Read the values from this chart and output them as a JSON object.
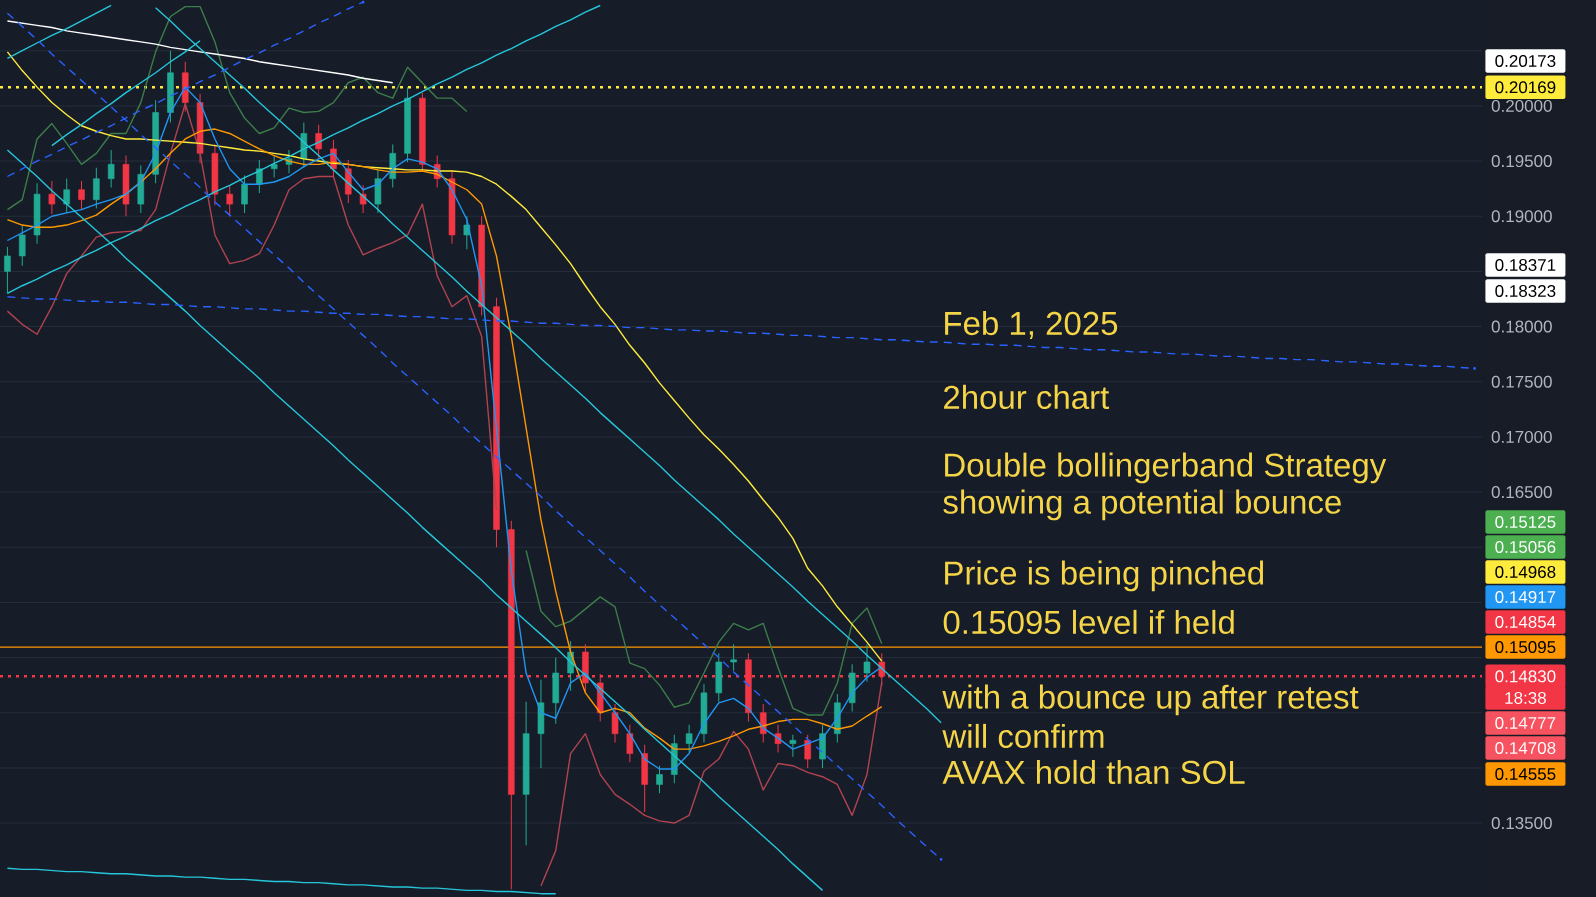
{
  "chart_data": {
    "type": "candlestick",
    "categories": [
      null,
      null,
      null,
      null,
      null,
      null,
      null,
      null,
      null,
      null,
      null,
      null,
      null,
      null,
      null,
      null,
      null,
      null,
      null,
      null,
      null,
      null,
      null,
      null,
      null,
      null,
      null,
      null,
      null,
      null,
      null,
      null,
      null,
      null,
      null,
      null,
      null,
      null,
      null,
      null,
      null,
      null,
      null,
      null,
      null,
      null,
      null,
      null,
      null,
      null,
      null,
      null,
      null,
      null,
      null,
      null,
      null,
      null,
      null,
      null,
      null,
      null,
      null,
      null,
      null,
      null,
      null,
      null,
      null,
      null,
      null,
      null,
      null,
      null,
      null,
      null,
      null,
      null,
      null,
      null,
      null,
      null,
      null,
      null,
      null,
      null,
      null,
      null,
      null,
      null,
      null,
      null,
      null,
      null,
      null,
      null,
      null,
      null,
      null,
      null
    ],
    "ohlc": [
      [
        0.185,
        0.1872,
        0.183,
        0.1864
      ],
      [
        0.1864,
        0.1892,
        0.1855,
        0.1883
      ],
      [
        0.1883,
        0.193,
        0.1875,
        0.192
      ],
      [
        0.192,
        0.1932,
        0.1902,
        0.1911
      ],
      [
        0.1911,
        0.1934,
        0.1903,
        0.1924
      ],
      [
        0.1924,
        0.1932,
        0.1906,
        0.1915
      ],
      [
        0.1915,
        0.1944,
        0.1907,
        0.1934
      ],
      [
        0.1934,
        0.196,
        0.1926,
        0.1947
      ],
      [
        0.1947,
        0.1955,
        0.19,
        0.1911
      ],
      [
        0.1911,
        0.1946,
        0.1903,
        0.1938
      ],
      [
        0.1938,
        0.2005,
        0.193,
        0.1994
      ],
      [
        0.1994,
        0.205,
        0.1985,
        0.203
      ],
      [
        0.203,
        0.204,
        0.1995,
        0.2003
      ],
      [
        0.2003,
        0.2011,
        0.1948,
        0.1957
      ],
      [
        0.1957,
        0.1965,
        0.191,
        0.192
      ],
      [
        0.192,
        0.1928,
        0.19,
        0.1911
      ],
      [
        0.1911,
        0.1937,
        0.1903,
        0.1929
      ],
      [
        0.1929,
        0.1951,
        0.1921,
        0.1943
      ],
      [
        0.1943,
        0.1955,
        0.1935,
        0.1947
      ],
      [
        0.1947,
        0.196,
        0.1939,
        0.1952
      ],
      [
        0.1952,
        0.1985,
        0.1944,
        0.1975
      ],
      [
        0.1975,
        0.1983,
        0.1953,
        0.1961
      ],
      [
        0.1961,
        0.1969,
        0.1935,
        0.1943
      ],
      [
        0.1943,
        0.1951,
        0.1912,
        0.192
      ],
      [
        0.192,
        0.1928,
        0.1903,
        0.1911
      ],
      [
        0.1911,
        0.1942,
        0.1903,
        0.1934
      ],
      [
        0.1934,
        0.1965,
        0.1926,
        0.1957
      ],
      [
        0.1957,
        0.20169,
        0.1949,
        0.2007
      ],
      [
        0.2007,
        0.2012,
        0.194,
        0.1947
      ],
      [
        0.1947,
        0.1955,
        0.1926,
        0.1934
      ],
      [
        0.1934,
        0.1942,
        0.1875,
        0.1883
      ],
      [
        0.1883,
        0.19,
        0.187,
        0.1892
      ],
      [
        0.1892,
        0.19,
        0.181,
        0.1818
      ],
      [
        0.1818,
        0.1826,
        0.16,
        0.1616
      ],
      [
        0.1616,
        0.1624,
        0.129,
        0.1376
      ],
      [
        0.1376,
        0.146,
        0.133,
        0.1431
      ],
      [
        0.1431,
        0.148,
        0.14,
        0.1459
      ],
      [
        0.1459,
        0.15,
        0.144,
        0.1486
      ],
      [
        0.1486,
        0.1515,
        0.147,
        0.1505
      ],
      [
        0.1505,
        0.1512,
        0.1468,
        0.1477
      ],
      [
        0.1477,
        0.1485,
        0.1442,
        0.145
      ],
      [
        0.145,
        0.1458,
        0.1423,
        0.1431
      ],
      [
        0.1431,
        0.1439,
        0.1405,
        0.1413
      ],
      [
        0.1413,
        0.1421,
        0.136,
        0.1385
      ],
      [
        0.1385,
        0.1402,
        0.1377,
        0.1394
      ],
      [
        0.1394,
        0.143,
        0.1386,
        0.1422
      ],
      [
        0.1422,
        0.1439,
        0.1414,
        0.1431
      ],
      [
        0.1431,
        0.1476,
        0.1423,
        0.1468
      ],
      [
        0.1468,
        0.1504,
        0.146,
        0.1496
      ],
      [
        0.1496,
        0.1512,
        0.1488,
        0.1498
      ],
      [
        0.1498,
        0.1504,
        0.1442,
        0.145
      ],
      [
        0.145,
        0.1458,
        0.1423,
        0.1431
      ],
      [
        0.1431,
        0.1439,
        0.1414,
        0.1422
      ],
      [
        0.1422,
        0.143,
        0.141,
        0.1425
      ],
      [
        0.1425,
        0.143,
        0.14,
        0.1408
      ],
      [
        0.1408,
        0.1439,
        0.14,
        0.1431
      ],
      [
        0.1431,
        0.1467,
        0.1423,
        0.1459
      ],
      [
        0.1459,
        0.1494,
        0.1451,
        0.1486
      ],
      [
        0.1486,
        0.1512,
        0.1478,
        0.1496
      ],
      [
        0.1496,
        0.1504,
        0.1475,
        0.1483
      ],
      null,
      null,
      null,
      null,
      null,
      null,
      null,
      null,
      null,
      null,
      null,
      null,
      null,
      null,
      null,
      null,
      null,
      null,
      null,
      null,
      null,
      null,
      null,
      null,
      null,
      null,
      null,
      null,
      null,
      null,
      null,
      null,
      null,
      null,
      null,
      null,
      null,
      null,
      null,
      null
    ],
    "colors": [
      "#22ab94",
      "#22ab94",
      "#22ab94",
      "#f23645",
      "#22ab94",
      "#f23645",
      "#22ab94",
      "#22ab94",
      "#f23645",
      "#22ab94",
      "#22ab94",
      "#22ab94",
      "#f23645",
      "#f23645",
      "#f23645",
      "#f23645",
      "#22ab94",
      "#22ab94",
      "#22ab94",
      "#22ab94",
      "#22ab94",
      "#f23645",
      "#f23645",
      "#f23645",
      "#f23645",
      "#22ab94",
      "#22ab94",
      "#22ab94",
      "#f23645",
      "#f23645",
      "#f23645",
      "#22ab94",
      "#f23645",
      "#f23645",
      "#f23645",
      "#22ab94",
      "#22ab94",
      "#22ab94",
      "#22ab94",
      "#f23645",
      "#f23645",
      "#f23645",
      "#f23645",
      "#f23645",
      "#22ab94",
      "#22ab94",
      "#22ab94",
      "#22ab94",
      "#22ab94",
      "#22ab94",
      "#f23645",
      "#f23645",
      "#f23645",
      "#22ab94",
      "#f23645",
      "#22ab94",
      "#22ab94",
      "#22ab94",
      "#22ab94",
      "#f23645",
      null,
      null,
      null,
      null,
      null,
      null,
      null,
      null,
      null,
      null,
      null,
      null,
      null,
      null,
      null,
      null,
      null,
      null,
      null,
      null,
      null,
      null,
      null,
      null,
      null,
      null,
      null,
      null,
      null,
      null,
      null,
      null,
      null,
      null,
      null,
      null,
      null,
      null,
      null,
      null
    ],
    "series": [
      {
        "type": "line",
        "color": "#3d7d4a",
        "values": [
          0.1906,
          0.1915,
          0.197,
          0.1984,
          0.1966,
          0.1947,
          0.1957,
          0.1975,
          0.1975,
          0.2003,
          0.2049,
          0.2081,
          0.209,
          0.209,
          0.2058,
          0.2012,
          0.1989,
          0.1975,
          0.198,
          0.1998,
          0.1994,
          0.1995,
          0.2003,
          0.2021,
          0.2026,
          0.2012,
          0.2007,
          0.2035,
          0.2021,
          0.2007,
          0.2007,
          0.1995,
          null,
          null,
          null,
          0.1597,
          0.1542,
          0.1528,
          0.1533,
          0.1544,
          0.1555,
          0.1546,
          0.1495,
          0.149,
          0.1475,
          0.1455,
          0.1459,
          0.1486,
          0.1514,
          0.1531,
          0.1525,
          0.1531,
          0.1491,
          0.1454,
          0.1448,
          0.1448,
          0.1477,
          0.1531,
          0.1545,
          0.15125,
          null,
          null,
          null,
          null,
          null,
          null,
          null,
          null,
          null,
          null,
          null,
          null,
          null,
          null,
          null,
          null,
          null,
          null,
          null,
          null,
          null,
          null,
          null,
          null,
          null,
          null,
          null,
          null,
          null,
          null,
          null,
          null,
          null,
          null,
          null,
          null,
          null,
          null,
          null,
          null
        ]
      },
      {
        "type": "line",
        "color": "#b0434f",
        "values": [
          0.1814,
          0.1802,
          0.1793,
          0.1818,
          0.1848,
          0.1864,
          0.1881,
          0.1885,
          0.1886,
          0.1887,
          0.1906,
          0.1957,
          0.2002,
          0.1957,
          0.1883,
          0.1857,
          0.186,
          0.1866,
          0.1892,
          0.1924,
          0.1934,
          0.1936,
          0.1936,
          0.1892,
          0.1865,
          0.1871,
          0.1876,
          0.1883,
          0.1911,
          0.1846,
          0.1818,
          0.1828,
          0.1791,
          0.1634,
          null,
          null,
          0.1293,
          0.1325,
          0.1413,
          0.1431,
          0.1394,
          0.1376,
          0.1367,
          0.1357,
          0.1352,
          0.135,
          0.1357,
          0.1397,
          0.1408,
          0.1433,
          0.1417,
          0.138,
          0.1404,
          0.1402,
          0.1396,
          0.1392,
          0.1385,
          0.1357,
          0.1394,
          0.14777,
          null,
          null,
          null,
          null,
          null,
          null,
          null,
          null,
          null,
          null,
          null,
          null,
          null,
          null,
          null,
          null,
          null,
          null,
          null,
          null,
          null,
          null,
          null,
          null,
          null,
          null,
          null,
          null,
          null,
          null,
          null,
          null,
          null,
          null,
          null,
          null,
          null,
          null,
          null,
          null
        ]
      },
      {
        "type": "line",
        "color": "#ffeb3b",
        "values": [
          0.2049,
          0.2032,
          0.2017,
          0.2003,
          0.1992,
          0.1982,
          0.1977,
          0.1973,
          0.197,
          0.197,
          0.1969,
          0.1968,
          0.1967,
          0.1966,
          0.1964,
          0.1962,
          0.196,
          0.1959,
          0.1957,
          0.1955,
          0.1952,
          0.195,
          0.1948,
          0.1947,
          0.1945,
          0.1944,
          0.1943,
          0.1942,
          0.1942,
          0.1941,
          0.1941,
          0.194,
          0.1936,
          0.1929,
          0.1918,
          0.1906,
          0.189,
          0.1874,
          0.1857,
          0.1837,
          0.1818,
          0.1802,
          0.1783,
          0.1767,
          0.1749,
          0.1733,
          0.1717,
          0.1702,
          0.1689,
          0.1675,
          0.166,
          0.1643,
          0.1627,
          0.1608,
          0.1581,
          0.1565,
          0.1546,
          0.153,
          0.1514,
          0.14968,
          null,
          null,
          null,
          null,
          null,
          null,
          null,
          null,
          null,
          null,
          null,
          null,
          null,
          null,
          null,
          null,
          null,
          null,
          null,
          null,
          null,
          null,
          null,
          null,
          null,
          null,
          null,
          null,
          null,
          null,
          null,
          null,
          null,
          null,
          null,
          null,
          null,
          null,
          null,
          null
        ]
      },
      {
        "type": "line",
        "color": "#ff9800",
        "values": [
          0.1897,
          0.1892,
          0.189,
          0.189,
          0.1892,
          0.1896,
          0.1901,
          0.1911,
          0.192,
          0.1931,
          0.1943,
          0.1957,
          0.197,
          0.1977,
          0.1979,
          0.1975,
          0.1968,
          0.1961,
          0.1955,
          0.195,
          0.1947,
          0.1947,
          0.1949,
          0.1947,
          0.1945,
          0.1942,
          0.194,
          0.194,
          0.1941,
          0.1938,
          0.1931,
          0.1924,
          0.1911,
          0.1864,
          0.1791,
          0.1708,
          0.1625,
          0.156,
          0.1505,
          0.1468,
          0.145,
          0.1454,
          0.145,
          0.1436,
          0.1427,
          0.1417,
          0.1417,
          0.142,
          0.1424,
          0.1429,
          0.1435,
          0.1438,
          0.1442,
          0.1444,
          0.1444,
          0.144,
          0.1435,
          0.1438,
          0.1447,
          0.14555,
          null,
          null,
          null,
          null,
          null,
          null,
          null,
          null,
          null,
          null,
          null,
          null,
          null,
          null,
          null,
          null,
          null,
          null,
          null,
          null,
          null,
          null,
          null,
          null,
          null,
          null,
          null,
          null,
          null,
          null,
          null,
          null,
          null,
          null,
          null,
          null,
          null,
          null,
          null,
          null
        ]
      },
      {
        "type": "line",
        "color": "#2196f3",
        "values": [
          0.1878,
          0.1885,
          0.1892,
          0.19,
          0.1903,
          0.1906,
          0.1911,
          0.1915,
          0.192,
          0.1931,
          0.1957,
          0.1994,
          0.2017,
          0.2003,
          0.197,
          0.1943,
          0.1929,
          0.1929,
          0.1931,
          0.1936,
          0.1945,
          0.1952,
          0.1957,
          0.194,
          0.1924,
          0.1929,
          0.1943,
          0.1952,
          0.1949,
          0.1943,
          0.1924,
          0.1897,
          0.1837,
          0.1708,
          0.1579,
          0.1486,
          0.145,
          0.1445,
          0.1477,
          0.1486,
          0.1468,
          0.145,
          0.1431,
          0.1408,
          0.1399,
          0.1399,
          0.1413,
          0.144,
          0.1459,
          0.1463,
          0.1454,
          0.1436,
          0.1427,
          0.1417,
          0.1422,
          0.1427,
          0.1445,
          0.1468,
          0.1482,
          0.14917,
          null,
          null,
          null,
          null,
          null,
          null,
          null,
          null,
          null,
          null,
          null,
          null,
          null,
          null,
          null,
          null,
          null,
          null,
          null,
          null,
          null,
          null,
          null,
          null,
          null,
          null,
          null,
          null,
          null,
          null,
          null,
          null,
          null,
          null,
          null,
          null,
          null,
          null,
          null,
          null
        ]
      },
      {
        "type": "line",
        "color": "#ffffff",
        "values": [
          0.2077,
          0.2075,
          0.2073,
          0.2071,
          0.2068,
          0.2066,
          0.2064,
          0.2062,
          0.206,
          0.2058,
          0.2056,
          0.2053,
          0.2051,
          0.2049,
          0.2047,
          0.2045,
          0.2043,
          0.204,
          0.2038,
          0.2036,
          0.2034,
          0.2032,
          0.203,
          0.2028,
          0.2025,
          0.2023,
          0.2021,
          null,
          null,
          null,
          null,
          null,
          null,
          null,
          null,
          null,
          null,
          null,
          null,
          null,
          null,
          null,
          null,
          null,
          null,
          null,
          null,
          null,
          null,
          null,
          null,
          null,
          null,
          null,
          null,
          null,
          null,
          null,
          null,
          null,
          null,
          null,
          null,
          null,
          null,
          null,
          null,
          null,
          null,
          null,
          null,
          null,
          null,
          null,
          null,
          null,
          null,
          null,
          null,
          null,
          null,
          null,
          null,
          null,
          null,
          null,
          null,
          null,
          null,
          null,
          null,
          null,
          null,
          null,
          null,
          null,
          null,
          null,
          null,
          null
        ]
      },
      {
        "type": "line",
        "color": "#26c6da",
        "values": [
          null,
          null,
          null,
          null,
          null,
          null,
          null,
          null,
          null,
          null,
          0.2089,
          0.2077,
          0.2064,
          0.2052,
          0.204,
          0.2028,
          0.2016,
          0.2003,
          0.1991,
          0.1979,
          0.1967,
          0.1955,
          0.1942,
          0.193,
          0.1918,
          0.1906,
          0.1893,
          0.1881,
          0.1869,
          0.1857,
          0.1845,
          0.1832,
          0.182,
          0.1808,
          0.1796,
          0.1784,
          0.1771,
          0.1759,
          0.1747,
          0.1735,
          0.1722,
          0.171,
          0.1698,
          0.1686,
          0.1674,
          0.1661,
          0.1649,
          0.1637,
          0.1625,
          0.1612,
          0.16,
          0.1588,
          0.1576,
          0.1564,
          0.1551,
          0.1539,
          0.1527,
          0.1515,
          0.1502,
          0.149,
          0.1478,
          0.1466,
          0.1454,
          0.1441,
          null,
          null,
          null,
          null,
          null,
          null,
          null,
          null,
          null,
          null,
          null,
          null,
          null,
          null,
          null,
          null,
          null,
          null,
          null,
          null,
          null,
          null,
          null,
          null,
          null,
          null,
          null,
          null,
          null,
          null,
          null,
          null,
          null,
          null,
          null,
          null
        ]
      },
      {
        "type": "line",
        "color": "#26c6da",
        "values": [
          0.196,
          0.1948,
          0.1936,
          0.1923,
          0.1911,
          0.1899,
          0.1887,
          0.1875,
          0.1862,
          0.185,
          0.1838,
          0.1826,
          0.1814,
          0.1801,
          0.1789,
          0.1777,
          0.1765,
          0.1753,
          0.174,
          0.1728,
          0.1716,
          0.1704,
          0.1692,
          0.1679,
          0.1667,
          0.1655,
          0.1643,
          0.1631,
          0.1618,
          0.1606,
          0.1594,
          0.1582,
          0.157,
          0.1557,
          0.1545,
          0.1533,
          0.1521,
          0.1509,
          0.1496,
          0.1484,
          0.1472,
          0.146,
          0.1448,
          0.1435,
          0.1423,
          0.1411,
          0.1399,
          0.1387,
          0.1374,
          0.1362,
          0.135,
          0.1338,
          0.1326,
          0.1313,
          0.1301,
          0.1289,
          null,
          null,
          null,
          null,
          null,
          null,
          null,
          null,
          null,
          null,
          null,
          null,
          null,
          null,
          null,
          null,
          null,
          null,
          null,
          null,
          null,
          null,
          null,
          null,
          null,
          null,
          null,
          null,
          null,
          null,
          null,
          null,
          null,
          null,
          null,
          null,
          null,
          null,
          null,
          null,
          null,
          null,
          null,
          null
        ]
      },
      {
        "type": "line",
        "color": "#26c6da",
        "values": [
          0.1309,
          0.1308,
          0.1308,
          0.1307,
          0.1306,
          0.1306,
          0.1305,
          0.1304,
          0.1304,
          0.1303,
          0.1302,
          0.1302,
          0.1301,
          0.1301,
          0.13,
          0.1299,
          0.1299,
          0.1298,
          0.1297,
          0.1297,
          0.1296,
          0.1296,
          0.1295,
          0.1294,
          0.1294,
          0.1293,
          0.1292,
          0.1292,
          0.1291,
          0.1291,
          0.129,
          0.1289,
          0.1289,
          0.1288,
          0.1288,
          0.1287,
          0.1286,
          0.1286,
          null,
          null,
          null,
          null,
          null,
          null,
          null,
          null,
          null,
          null,
          null,
          null,
          null,
          null,
          null,
          null,
          null,
          null,
          null,
          null,
          null,
          null,
          null,
          null,
          null,
          null,
          null,
          null,
          null,
          null,
          null,
          null,
          null,
          null,
          null,
          null,
          null,
          null,
          null,
          null,
          null,
          null,
          null,
          null,
          null,
          null,
          null,
          null,
          null,
          null,
          null,
          null,
          null,
          null,
          null,
          null,
          null,
          null,
          null,
          null,
          null,
          null
        ]
      },
      {
        "type": "line",
        "color": "#26c6da",
        "values": [
          0.183,
          0.1837,
          0.1843,
          0.185,
          0.1856,
          0.1863,
          0.1869,
          0.1876,
          0.1882,
          0.1889,
          0.1896,
          0.1902,
          0.1909,
          0.1915,
          0.1922,
          0.1928,
          0.1935,
          0.1941,
          0.1948,
          0.1954,
          0.1961,
          0.1967,
          0.1974,
          0.198,
          0.1987,
          0.1993,
          0.2,
          0.2006,
          0.2013,
          0.202,
          0.2026,
          0.2033,
          0.2039,
          0.2046,
          0.2052,
          0.2059,
          0.2065,
          0.2072,
          0.2078,
          0.2085,
          0.2091,
          null,
          null,
          null,
          null,
          null,
          null,
          null,
          null,
          null,
          null,
          null,
          null,
          null,
          null,
          null,
          null,
          null,
          null,
          null,
          null,
          null,
          null,
          null,
          null,
          null,
          null,
          null,
          null,
          null,
          null,
          null,
          null,
          null,
          null,
          null,
          null,
          null,
          null,
          null,
          null,
          null,
          null,
          null,
          null,
          null,
          null,
          null,
          null,
          null,
          null,
          null,
          null,
          null,
          null,
          null,
          null,
          null,
          null,
          null
        ]
      },
      {
        "type": "line",
        "color": "#26c6da",
        "values": [
          0.2043,
          0.205,
          0.2057,
          0.2064,
          0.207,
          0.2077,
          0.2084,
          0.2091,
          null,
          null,
          null,
          null,
          null,
          null,
          null,
          null,
          null,
          null,
          null,
          null,
          null,
          null,
          null,
          null,
          null,
          null,
          null,
          null,
          null,
          null,
          null,
          null,
          null,
          null,
          null,
          null,
          null,
          null,
          null,
          null,
          null,
          null,
          null,
          null,
          null,
          null,
          null,
          null,
          null,
          null,
          null,
          null,
          null,
          null,
          null,
          null,
          null,
          null,
          null,
          null,
          null,
          null,
          null,
          null,
          null,
          null,
          null,
          null,
          null,
          null,
          null,
          null,
          null,
          null,
          null,
          null,
          null,
          null,
          null,
          null,
          null,
          null,
          null,
          null,
          null,
          null,
          null,
          null,
          null,
          null,
          null,
          null,
          null,
          null,
          null,
          null,
          null,
          null,
          null,
          null
        ]
      },
      {
        "type": "line",
        "color": "#26c6da",
        "values": [
          null,
          null,
          null,
          0.1964,
          0.1974,
          0.1983,
          0.1993,
          0.2002,
          0.2012,
          0.2021,
          0.203,
          0.204,
          0.2049,
          0.2059,
          null,
          null,
          null,
          null,
          null,
          null,
          null,
          null,
          null,
          null,
          null,
          null,
          null,
          null,
          null,
          null,
          null,
          null,
          null,
          null,
          null,
          null,
          null,
          null,
          null,
          null,
          null,
          null,
          null,
          null,
          null,
          null,
          null,
          null,
          null,
          null,
          null,
          null,
          null,
          null,
          null,
          null,
          null,
          null,
          null,
          null,
          null,
          null,
          null,
          null,
          null,
          null,
          null,
          null,
          null,
          null,
          null,
          null,
          null,
          null,
          null,
          null,
          null,
          null,
          null,
          null,
          null,
          null,
          null,
          null,
          null,
          null,
          null,
          null,
          null,
          null,
          null,
          null,
          null,
          null,
          null,
          null,
          null,
          null,
          null,
          null
        ]
      },
      {
        "type": "line",
        "color": "#2962ff",
        "line_style": "dashed",
        "values": [
          0.2084,
          0.2072,
          0.206,
          0.2047,
          0.2035,
          0.2023,
          0.2011,
          0.1999,
          0.1987,
          0.1974,
          0.1962,
          0.195,
          0.1938,
          0.1926,
          0.1913,
          0.1901,
          0.1889,
          0.1877,
          0.1865,
          0.1853,
          0.184,
          0.1828,
          0.1816,
          0.1804,
          0.1792,
          0.178,
          0.1767,
          0.1755,
          0.1743,
          0.1731,
          0.1719,
          0.1706,
          0.1694,
          0.1682,
          0.167,
          0.1658,
          0.1646,
          0.1633,
          0.1621,
          0.1609,
          0.1597,
          0.1585,
          0.1573,
          0.156,
          0.1548,
          0.1536,
          0.1524,
          0.1512,
          0.15,
          0.1487,
          0.1475,
          0.1463,
          0.1451,
          0.1439,
          0.1426,
          0.1414,
          0.1402,
          0.139,
          0.1378,
          0.1366,
          0.1353,
          0.1341,
          0.1329,
          0.1317,
          null,
          null,
          null,
          null,
          null,
          null,
          null,
          null,
          null,
          null,
          null,
          null,
          null,
          null,
          null,
          null,
          null,
          null,
          null,
          null,
          null,
          null,
          null,
          null,
          null,
          null,
          null,
          null,
          null,
          null,
          null,
          null,
          null,
          null,
          null,
          null
        ]
      },
      {
        "type": "line",
        "color": "#2962ff",
        "line_style": "dashed",
        "values": [
          0.1936,
          0.1943,
          0.195,
          0.1956,
          0.1963,
          0.1969,
          0.1976,
          0.1982,
          0.1989,
          0.1996,
          0.2002,
          0.2009,
          0.2015,
          0.2022,
          0.2028,
          0.2035,
          0.2042,
          0.2048,
          0.2055,
          0.2061,
          0.2068,
          0.2075,
          0.2081,
          0.2088,
          0.2094,
          null,
          null,
          null,
          null,
          null,
          null,
          null,
          null,
          null,
          null,
          null,
          null,
          null,
          null,
          null,
          null,
          null,
          null,
          null,
          null,
          null,
          null,
          null,
          null,
          null,
          null,
          null,
          null,
          null,
          null,
          null,
          null,
          null,
          null,
          null,
          null,
          null,
          null,
          null,
          null,
          null,
          null,
          null,
          null,
          null,
          null,
          null,
          null,
          null,
          null,
          null,
          null,
          null,
          null,
          null,
          null,
          null,
          null,
          null,
          null,
          null,
          null,
          null,
          null,
          null,
          null,
          null,
          null,
          null,
          null,
          null,
          null,
          null,
          null,
          null
        ]
      },
      {
        "type": "line",
        "color": "#2962ff",
        "line_style": "dashed",
        "values": [
          0.1827,
          0.1826,
          0.1825,
          0.1825,
          0.1824,
          0.1823,
          0.1823,
          0.1822,
          0.1822,
          0.1821,
          0.182,
          0.182,
          0.1819,
          0.1818,
          0.1818,
          0.1817,
          0.1816,
          0.1816,
          0.1815,
          0.1814,
          0.1814,
          0.1813,
          0.1812,
          0.1812,
          0.1811,
          0.1811,
          0.181,
          0.1809,
          0.1809,
          0.1808,
          0.1807,
          0.1807,
          0.1806,
          0.1805,
          0.1805,
          0.1804,
          0.1803,
          0.1803,
          0.1802,
          0.1801,
          0.1801,
          0.18,
          0.1799,
          0.1799,
          0.1798,
          0.1797,
          0.1797,
          0.1796,
          0.1796,
          0.1795,
          0.1794,
          0.1794,
          0.1793,
          0.1792,
          0.1792,
          0.1791,
          0.179,
          0.179,
          0.1789,
          0.1788,
          0.1788,
          0.1787,
          0.1786,
          0.1786,
          0.1785,
          0.1784,
          0.1784,
          0.1783,
          0.1783,
          0.1782,
          0.1781,
          0.1781,
          0.178,
          0.1779,
          0.1779,
          0.1778,
          0.1777,
          0.1777,
          0.1776,
          0.1775,
          0.1775,
          0.1774,
          0.1773,
          0.1773,
          0.1772,
          0.1771,
          0.1771,
          0.177,
          0.177,
          0.1769,
          0.1768,
          0.1768,
          0.1767,
          0.1766,
          0.1766,
          0.1765,
          0.1764,
          0.1764,
          0.1763,
          0.1762
        ]
      }
    ],
    "ylim": [
      0.1283,
      0.2096
    ],
    "yticks": [
      {
        "value": 0.135,
        "label": "0.13500"
      },
      {
        "value": 0.14,
        "label": null
      },
      {
        "value": 0.145,
        "label": null
      },
      {
        "value": 0.15,
        "label": null
      },
      {
        "value": 0.155,
        "label": null
      },
      {
        "value": 0.16,
        "label": null
      },
      {
        "value": 0.165,
        "label": "0.16500"
      },
      {
        "value": 0.17,
        "label": "0.17000"
      },
      {
        "value": 0.175,
        "label": "0.17500"
      },
      {
        "value": 0.18,
        "label": "0.18000"
      },
      {
        "value": 0.185,
        "label": null
      },
      {
        "value": 0.19,
        "label": "0.19000"
      },
      {
        "value": 0.195,
        "label": "0.19500"
      },
      {
        "value": 0.2,
        "label": "0.20000"
      },
      {
        "value": 0.205,
        "label": null
      }
    ],
    "grid": "y",
    "tick_labels": "y",
    "ref_lines": [
      {
        "axis": "y",
        "value": 0.20169,
        "label": "0.20169",
        "color": "#ffeb3b",
        "line_style": "dotted"
      },
      {
        "axis": "y",
        "value": 0.15095,
        "label": "0.15095",
        "color": "#ff9800",
        "line_style": "solid"
      },
      {
        "axis": "y",
        "value": 0.1483,
        "label": "0.14830",
        "color": "#f23645",
        "line_style": "dotted"
      }
    ],
    "annotations": [
      "Feb 1, 2025",
      "2hour chart",
      "Double bollingerband Strategy",
      "showing a potential bounce",
      "Price is being pinched",
      "0.15095 level if held",
      "with a bounce up after retest",
      "will confirm",
      "AVAX hold than SOL",
      "0.20173",
      "0.18371",
      "0.18323",
      "0.15125",
      "0.15056",
      "0.14968",
      "0.14917",
      "0.14854",
      "18:38",
      "0.14777",
      "0.14708",
      "0.14555"
    ]
  }
}
